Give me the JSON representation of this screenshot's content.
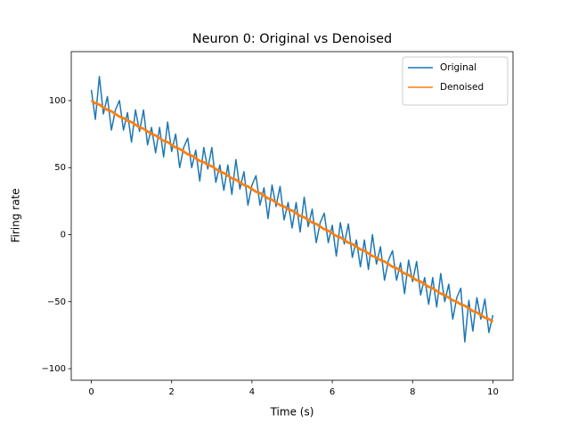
{
  "chart_data": {
    "type": "line",
    "title": "Neuron 0: Original vs Denoised",
    "xlabel": "Time (s)",
    "ylabel": "Firing rate",
    "x": [
      0,
      0.1,
      0.2,
      0.3,
      0.4,
      0.5,
      0.6,
      0.7,
      0.8,
      0.9,
      1,
      1.1,
      1.2,
      1.3,
      1.4,
      1.5,
      1.6,
      1.7,
      1.8,
      1.9,
      2,
      2.1,
      2.2,
      2.3,
      2.4,
      2.5,
      2.6,
      2.7,
      2.8,
      2.9,
      3,
      3.1,
      3.2,
      3.3,
      3.4,
      3.5,
      3.6,
      3.7,
      3.8,
      3.9,
      4,
      4.1,
      4.2,
      4.3,
      4.4,
      4.5,
      4.6,
      4.7,
      4.8,
      4.9,
      5,
      5.1,
      5.2,
      5.3,
      5.4,
      5.5,
      5.6,
      5.7,
      5.8,
      5.9,
      6,
      6.1,
      6.2,
      6.3,
      6.4,
      6.5,
      6.6,
      6.7,
      6.8,
      6.9,
      7,
      7.1,
      7.2,
      7.3,
      7.4,
      7.5,
      7.6,
      7.7,
      7.8,
      7.9,
      8,
      8.1,
      8.2,
      8.3,
      8.4,
      8.5,
      8.6,
      8.7,
      8.8,
      8.9,
      9,
      9.1,
      9.2,
      9.3,
      9.4,
      9.5,
      9.6,
      9.7,
      9.8,
      9.9,
      10
    ],
    "series": [
      {
        "name": "Original",
        "color": "#1f77b4",
        "values": [
          108,
          86,
          118,
          90,
          103,
          78,
          93,
          100,
          78,
          91,
          69,
          93,
          77,
          93,
          67,
          80,
          61,
          80,
          58,
          84,
          62,
          75,
          50,
          65,
          72,
          50,
          63,
          40,
          65,
          49,
          65,
          39,
          52,
          33,
          52,
          30,
          56,
          34,
          47,
          22,
          37,
          44,
          22,
          35,
          12,
          37,
          21,
          36,
          11,
          24,
          5,
          24,
          2,
          28,
          6,
          19,
          -6,
          9,
          16,
          -6,
          7,
          -16,
          9,
          -7,
          8,
          -17,
          -4,
          -24,
          -4,
          -26,
          0,
          -22,
          -9,
          -34,
          -19,
          -12,
          -34,
          -21,
          -44,
          -19,
          -35,
          -20,
          -45,
          -32,
          -52,
          -32,
          -54,
          -29,
          -50,
          -37,
          -63,
          -47,
          -40,
          -80,
          -49,
          -72,
          -47,
          -63,
          -48,
          -73,
          -60
        ]
      },
      {
        "name": "Denoised",
        "color": "#ff7f0e",
        "values": [
          100,
          98,
          97,
          95,
          93,
          92,
          90,
          88,
          87,
          85,
          84,
          82,
          80,
          79,
          77,
          75,
          74,
          72,
          70,
          69,
          67,
          65,
          64,
          62,
          60,
          59,
          57,
          55,
          54,
          52,
          51,
          49,
          47,
          46,
          44,
          42,
          41,
          39,
          37,
          36,
          34,
          32,
          31,
          29,
          27,
          26,
          24,
          22,
          21,
          19,
          18,
          16,
          14,
          13,
          11,
          9,
          8,
          6,
          4,
          3,
          1,
          -1,
          -2,
          -4,
          -6,
          -7,
          -9,
          -11,
          -12,
          -14,
          -16,
          -17,
          -19,
          -20,
          -22,
          -24,
          -25,
          -27,
          -29,
          -30,
          -32,
          -34,
          -35,
          -37,
          -39,
          -40,
          -42,
          -44,
          -45,
          -47,
          -49,
          -50,
          -52,
          -53,
          -55,
          -57,
          -58,
          -60,
          -62,
          -63,
          -65
        ]
      }
    ],
    "xlim": [
      -0.5,
      10.5
    ],
    "ylim": [
      -108.6,
      136.5
    ],
    "xticks": [
      0,
      2,
      4,
      6,
      8,
      10
    ],
    "yticks": [
      {
        "value": -100,
        "label": "−100"
      },
      {
        "value": -50,
        "label": "−50"
      },
      0,
      50,
      100
    ],
    "legend": "upper right"
  }
}
